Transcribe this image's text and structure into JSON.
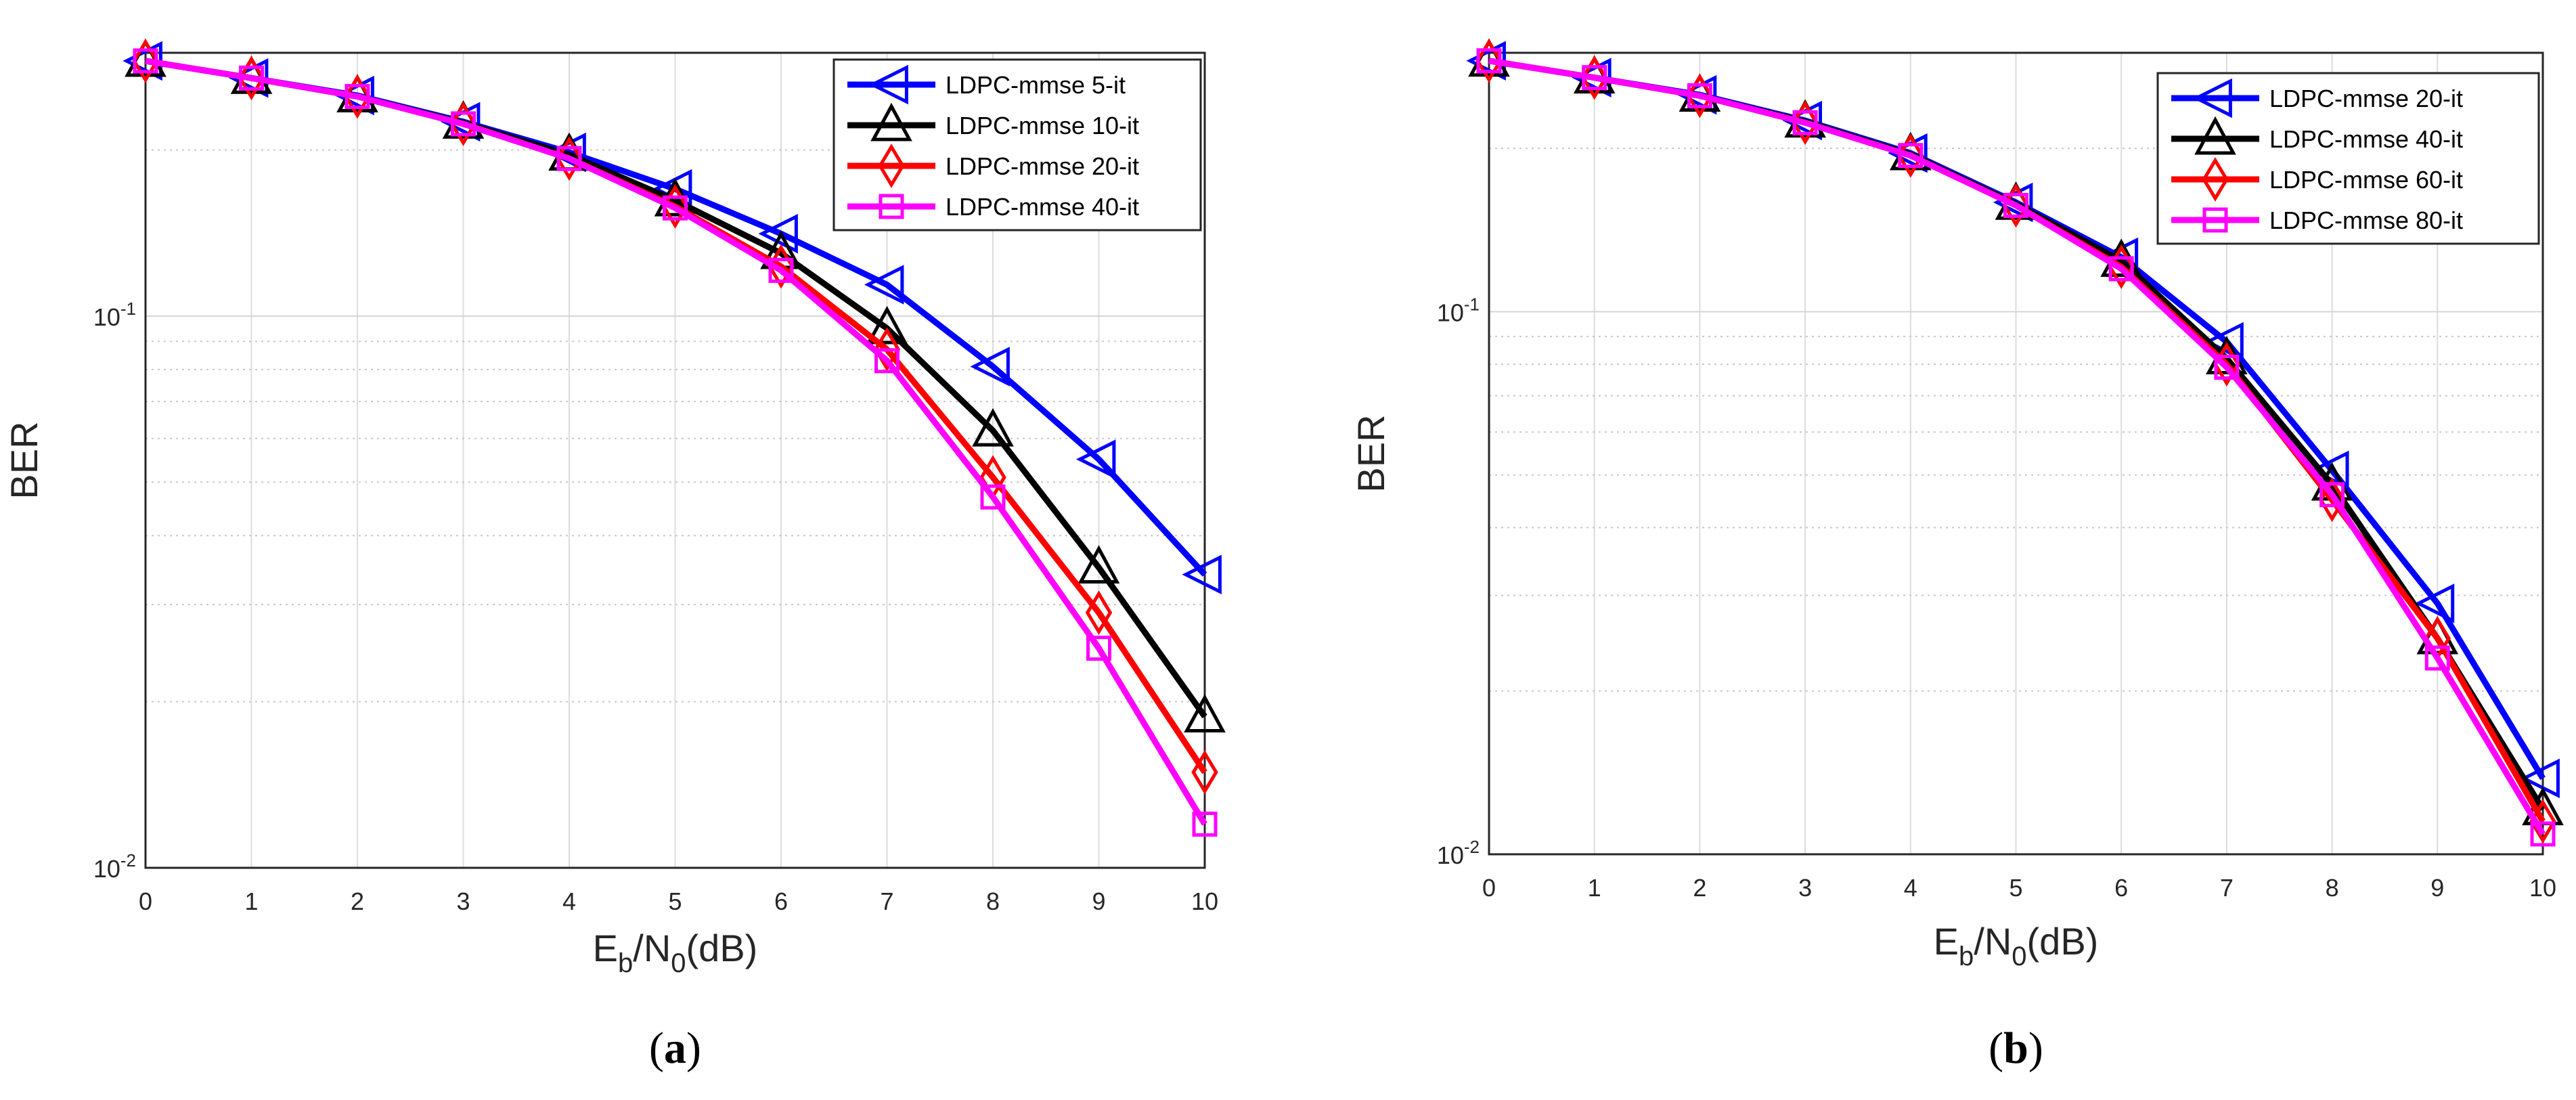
{
  "chart_data": [
    {
      "type": "line",
      "panel": "a",
      "caption_prefix": "(",
      "caption_letter": "a",
      "caption_suffix": ")",
      "xlabel_main": "E",
      "xlabel_sub1": "b",
      "xlabel_mid": "/N",
      "xlabel_sub2": "0",
      "xlabel_tail": "(dB)",
      "ylabel": "BER",
      "yscale": "log",
      "xlim": [
        0,
        10
      ],
      "ylim": [
        0.01,
        0.3
      ],
      "xticks": [
        "0",
        "1",
        "2",
        "3",
        "4",
        "5",
        "6",
        "7",
        "8",
        "9",
        "10"
      ],
      "ytick_labels": [
        {
          "base": "10",
          "exp": "-2"
        },
        {
          "base": "10",
          "exp": "-1"
        }
      ],
      "grid": true,
      "legend_position": "top-right",
      "x": [
        0,
        1,
        2,
        3,
        4,
        5,
        6,
        7,
        8,
        9,
        10
      ],
      "series": [
        {
          "name": "LDPC-mmse 5-it",
          "color": "#0000ff",
          "marker": "triangle-left",
          "values": [
            0.29,
            0.27,
            0.251,
            0.225,
            0.198,
            0.17,
            0.141,
            0.114,
            0.081,
            0.055,
            0.034
          ]
        },
        {
          "name": "LDPC-mmse 10-it",
          "color": "#000000",
          "marker": "triangle-up",
          "values": [
            0.29,
            0.27,
            0.25,
            0.224,
            0.196,
            0.162,
            0.13,
            0.095,
            0.062,
            0.035,
            0.0188
          ]
        },
        {
          "name": "LDPC-mmse 20-it",
          "color": "#ff0000",
          "marker": "diamond",
          "values": [
            0.29,
            0.27,
            0.25,
            0.223,
            0.193,
            0.158,
            0.123,
            0.087,
            0.051,
            0.029,
            0.0149
          ]
        },
        {
          "name": "LDPC-mmse 40-it",
          "color": "#ff00ff",
          "marker": "square",
          "values": [
            0.29,
            0.27,
            0.25,
            0.223,
            0.193,
            0.157,
            0.121,
            0.083,
            0.047,
            0.025,
            0.012
          ]
        }
      ]
    },
    {
      "type": "line",
      "panel": "b",
      "caption_prefix": "(",
      "caption_letter": "b",
      "caption_suffix": ")",
      "xlabel_main": "E",
      "xlabel_sub1": "b",
      "xlabel_mid": "/N",
      "xlabel_sub2": "0",
      "xlabel_tail": "(dB)",
      "ylabel": "BER",
      "yscale": "log",
      "xlim": [
        0,
        10
      ],
      "ylim": [
        0.01,
        0.3
      ],
      "xticks": [
        "0",
        "1",
        "2",
        "3",
        "4",
        "5",
        "6",
        "7",
        "8",
        "9",
        "10"
      ],
      "ytick_labels": [
        {
          "base": "10",
          "exp": "-2"
        },
        {
          "base": "10",
          "exp": "-1"
        }
      ],
      "grid": true,
      "legend_position": "top-right",
      "x": [
        0,
        1,
        2,
        3,
        4,
        5,
        6,
        7,
        8,
        9,
        10
      ],
      "series": [
        {
          "name": "LDPC-mmse 20-it",
          "color": "#0000ff",
          "marker": "triangle-left",
          "values": [
            0.29,
            0.27,
            0.251,
            0.225,
            0.196,
            0.159,
            0.126,
            0.088,
            0.051,
            0.029,
            0.0138
          ]
        },
        {
          "name": "LDPC-mmse 40-it",
          "color": "#000000",
          "marker": "triangle-up",
          "values": [
            0.29,
            0.27,
            0.25,
            0.224,
            0.195,
            0.158,
            0.124,
            0.082,
            0.048,
            0.025,
            0.0121
          ]
        },
        {
          "name": "LDPC-mmse 60-it",
          "color": "#ff0000",
          "marker": "diamond",
          "values": [
            0.29,
            0.27,
            0.25,
            0.223,
            0.194,
            0.157,
            0.121,
            0.08,
            0.045,
            0.025,
            0.0115
          ]
        },
        {
          "name": "LDPC-mmse 80-it",
          "color": "#ff00ff",
          "marker": "square",
          "values": [
            0.29,
            0.27,
            0.25,
            0.223,
            0.194,
            0.157,
            0.12,
            0.079,
            0.046,
            0.023,
            0.0109
          ]
        }
      ]
    }
  ]
}
